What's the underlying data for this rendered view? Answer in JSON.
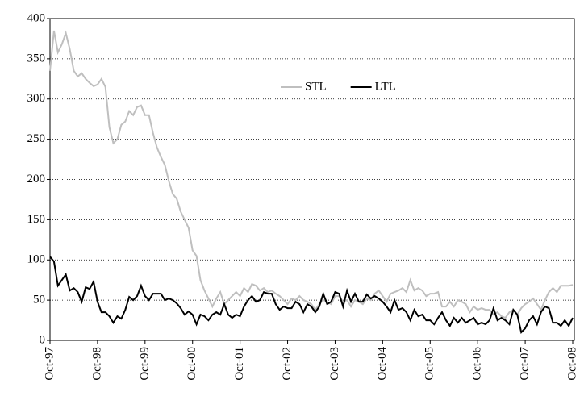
{
  "chart_data": {
    "type": "line",
    "categories": [
      "Oct-97",
      null,
      null,
      null,
      null,
      null,
      null,
      null,
      null,
      null,
      null,
      null,
      "Oct-98",
      null,
      null,
      null,
      null,
      null,
      null,
      null,
      null,
      null,
      null,
      null,
      "Oct-99",
      null,
      null,
      null,
      null,
      null,
      null,
      null,
      null,
      null,
      null,
      null,
      "Oct-00",
      null,
      null,
      null,
      null,
      null,
      null,
      null,
      null,
      null,
      null,
      null,
      "Oct-01",
      null,
      null,
      null,
      null,
      null,
      null,
      null,
      null,
      null,
      null,
      null,
      "Oct-02",
      null,
      null,
      null,
      null,
      null,
      null,
      null,
      null,
      null,
      null,
      null,
      "Oct-03",
      null,
      null,
      null,
      null,
      null,
      null,
      null,
      null,
      null,
      null,
      null,
      "Oct-04",
      null,
      null,
      null,
      null,
      null,
      null,
      null,
      null,
      null,
      null,
      null,
      "Oct-05",
      null,
      null,
      null,
      null,
      null,
      null,
      null,
      null,
      null,
      null,
      null,
      "Oct-06",
      null,
      null,
      null,
      null,
      null,
      null,
      null,
      null,
      null,
      null,
      null,
      "Oct-07",
      null,
      null,
      null,
      null,
      null,
      null,
      null,
      null,
      null,
      null,
      null,
      "Oct-08"
    ],
    "series": [
      {
        "name": "STL",
        "color": "#bfbfbf",
        "values": [
          335,
          385,
          358,
          368,
          382,
          362,
          335,
          328,
          332,
          325,
          320,
          316,
          318,
          325,
          315,
          265,
          245,
          250,
          268,
          272,
          285,
          280,
          290,
          292,
          280,
          280,
          258,
          240,
          228,
          218,
          198,
          182,
          176,
          160,
          150,
          140,
          112,
          105,
          75,
          62,
          52,
          42,
          52,
          60,
          45,
          50,
          55,
          60,
          55,
          65,
          60,
          70,
          68,
          62,
          65,
          60,
          62,
          58,
          55,
          50,
          45,
          52,
          50,
          55,
          50,
          48,
          45,
          38,
          45,
          50,
          48,
          45,
          55,
          55,
          48,
          50,
          42,
          50,
          48,
          45,
          52,
          50,
          58,
          62,
          55,
          48,
          58,
          60,
          62,
          65,
          60,
          75,
          62,
          65,
          62,
          55,
          58,
          58,
          60,
          42,
          42,
          48,
          42,
          50,
          48,
          45,
          35,
          42,
          38,
          40,
          38,
          38,
          32,
          35,
          30,
          28,
          35,
          38,
          32,
          40,
          45,
          48,
          52,
          45,
          38,
          50,
          60,
          65,
          60,
          68,
          68,
          68,
          69
        ]
      },
      {
        "name": "LTL",
        "color": "#000000",
        "values": [
          104,
          98,
          68,
          75,
          82,
          62,
          65,
          60,
          48,
          66,
          64,
          73,
          48,
          35,
          35,
          30,
          22,
          30,
          27,
          38,
          54,
          50,
          55,
          68,
          55,
          50,
          58,
          58,
          58,
          50,
          52,
          50,
          46,
          40,
          32,
          36,
          32,
          20,
          32,
          30,
          25,
          32,
          35,
          32,
          45,
          32,
          28,
          32,
          30,
          42,
          50,
          55,
          48,
          50,
          60,
          58,
          58,
          45,
          38,
          42,
          40,
          40,
          48,
          45,
          35,
          45,
          42,
          35,
          42,
          58,
          45,
          48,
          60,
          58,
          42,
          62,
          48,
          58,
          48,
          48,
          57,
          52,
          55,
          52,
          48,
          42,
          35,
          50,
          38,
          40,
          35,
          25,
          38,
          30,
          32,
          25,
          25,
          20,
          28,
          35,
          25,
          18,
          28,
          22,
          28,
          22,
          25,
          28,
          20,
          22,
          20,
          25,
          40,
          25,
          28,
          25,
          20,
          38,
          32,
          10,
          15,
          25,
          30,
          20,
          35,
          42,
          40,
          22,
          22,
          18,
          25,
          18,
          28
        ]
      }
    ],
    "ylim": [
      0,
      400
    ],
    "yticks": [
      0,
      50,
      100,
      150,
      200,
      250,
      300,
      350,
      400
    ],
    "grid": true,
    "legend": "top"
  }
}
